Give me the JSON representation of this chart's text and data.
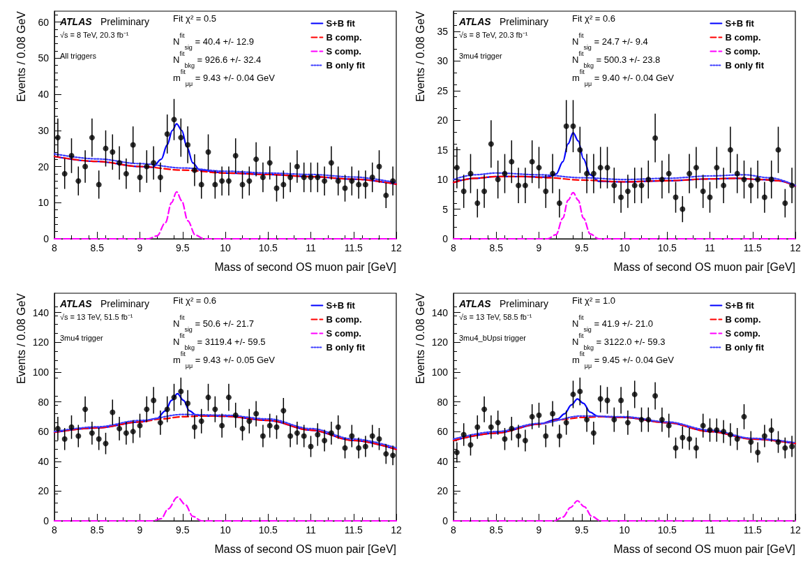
{
  "chart_data": [
    {
      "type": "scatter",
      "title": "ATLAS",
      "subtitle": "Preliminary",
      "xlabel": "Mass of second OS muon pair [GeV]",
      "ylabel": "Events / 0.08 GeV",
      "annotations": [
        "√s = 8 TeV, 20.3 fb⁻¹",
        "All triggers",
        "Fit χ² = 0.5",
        "N$^{fit}$$_{sig}$ = 40.4 +/- 12.9",
        "N$^{fit}$$_{bkg}$ = 926.6 +/- 32.4",
        "m$^{fit}$$_{μμ}$ = 9.43 +/- 0.04 GeV"
      ],
      "xlim": [
        8,
        12
      ],
      "xticks": [
        8,
        8.5,
        9,
        9.5,
        10,
        10.5,
        11,
        11.5,
        12
      ],
      "ylim": [
        0,
        63
      ],
      "yticks": [
        0,
        10,
        20,
        30,
        40,
        50,
        60
      ],
      "grid": false,
      "legend": "top right",
      "series": [
        {
          "marker": "circle",
          "color": "#000000",
          "x": [
            8.04,
            8.12,
            8.2,
            8.28,
            8.36,
            8.44,
            8.52,
            8.6,
            8.68,
            8.76,
            8.84,
            8.92,
            9,
            9.08,
            9.16,
            9.24,
            9.32,
            9.4,
            9.48,
            9.56,
            9.64,
            9.72,
            9.8,
            9.88,
            9.96,
            10.04,
            10.12,
            10.2,
            10.28,
            10.36,
            10.44,
            10.52,
            10.6,
            10.68,
            10.76,
            10.84,
            10.92,
            11,
            11.08,
            11.16,
            11.24,
            11.32,
            11.4,
            11.48,
            11.56,
            11.64,
            11.72,
            11.8,
            11.88,
            11.96
          ],
          "values": [
            28,
            18,
            23,
            16,
            20,
            28,
            15,
            25,
            24,
            21,
            18,
            26,
            17,
            20,
            21,
            17,
            29,
            33,
            28,
            26,
            19,
            15,
            24,
            15,
            16,
            16,
            23,
            15,
            16,
            22,
            17,
            21,
            14,
            15,
            17,
            20,
            17,
            17,
            17,
            16,
            21,
            16,
            14,
            16,
            15,
            15,
            17,
            20,
            12,
            16
          ],
          "errors": [
            5.3,
            4.2,
            4.8,
            4,
            4.5,
            5.3,
            3.9,
            5,
            4.9,
            4.6,
            4.2,
            5.1,
            4.1,
            4.5,
            4.6,
            4.1,
            5.4,
            5.7,
            5.3,
            5.1,
            4.4,
            3.9,
            4.9,
            3.9,
            4,
            4,
            4.8,
            3.9,
            4,
            4.7,
            4.1,
            4.6,
            3.7,
            3.9,
            4.1,
            4.5,
            4.1,
            4.1,
            4.1,
            4,
            4.6,
            4,
            3.7,
            4,
            3.9,
            3.9,
            4.1,
            4.5,
            3.5,
            4
          ]
        },
        {
          "type": "line",
          "name": "S+B fit",
          "color": "#0000ff",
          "line_style": "solid",
          "x": [
            8,
            8.5,
            9,
            9.15,
            9.25,
            9.32,
            9.38,
            9.43,
            9.49,
            9.55,
            9.62,
            9.7,
            10,
            10.5,
            11,
            11.5,
            12
          ],
          "values": [
            22.8,
            21.4,
            20,
            19.8,
            22,
            26,
            30,
            31.8,
            30,
            25.5,
            21,
            19,
            18.2,
            17.8,
            17.2,
            16.5,
            15.1
          ]
        },
        {
          "type": "line",
          "name": "B comp.",
          "color": "#ff0000",
          "line_style": "dashed",
          "x": [
            8,
            8.5,
            9,
            9.5,
            10,
            10.5,
            11,
            11.5,
            12
          ],
          "values": [
            22.8,
            21.4,
            20,
            19,
            18.2,
            17.8,
            17.2,
            16.5,
            15.1
          ]
        },
        {
          "type": "line",
          "name": "S comp.",
          "color": "#ff00ff",
          "line_style": "dashed",
          "x": [
            8,
            9.1,
            9.2,
            9.3,
            9.37,
            9.43,
            9.49,
            9.56,
            9.65,
            9.75,
            12
          ],
          "values": [
            0,
            0,
            0.8,
            4.5,
            10,
            13,
            10.5,
            5,
            1,
            0,
            0
          ]
        },
        {
          "type": "line",
          "name": "B only fit",
          "color": "#3b3bff",
          "line_style": "dotted",
          "x": [
            8,
            8.5,
            9,
            9.5,
            10,
            10.5,
            11,
            11.5,
            12
          ],
          "values": [
            23.5,
            22.1,
            20.8,
            19.6,
            18.7,
            18.2,
            17.8,
            17.1,
            15.5
          ]
        }
      ]
    },
    {
      "type": "scatter",
      "title": "ATLAS",
      "subtitle": "Preliminary",
      "xlabel": "Mass of second OS muon pair [GeV]",
      "ylabel": "Events / 0.08 GeV",
      "annotations": [
        "√s = 8 TeV, 20.3 fb⁻¹",
        "3mu4 trigger",
        "Fit χ² = 0.6",
        "N$^{fit}$$_{sig}$ = 24.7 +/- 9.4",
        "N$^{fit}$$_{bkg}$ = 500.3 +/- 23.8",
        "m$^{fit}$$_{μμ}$ = 9.40 +/- 0.04 GeV"
      ],
      "xlim": [
        8,
        12
      ],
      "xticks": [
        8,
        8.5,
        9,
        9.5,
        10,
        10.5,
        11,
        11.5,
        12
      ],
      "ylim": [
        0,
        38.4
      ],
      "yticks": [
        0,
        5,
        10,
        15,
        20,
        25,
        30,
        35
      ],
      "grid": false,
      "legend": "top right",
      "series": [
        {
          "marker": "circle",
          "color": "#000000",
          "x": [
            8.04,
            8.12,
            8.2,
            8.28,
            8.36,
            8.44,
            8.52,
            8.6,
            8.68,
            8.76,
            8.84,
            8.92,
            9,
            9.08,
            9.16,
            9.24,
            9.32,
            9.4,
            9.48,
            9.56,
            9.64,
            9.72,
            9.8,
            9.88,
            9.96,
            10.04,
            10.12,
            10.2,
            10.28,
            10.36,
            10.44,
            10.52,
            10.6,
            10.68,
            10.76,
            10.84,
            10.92,
            11,
            11.08,
            11.16,
            11.24,
            11.32,
            11.4,
            11.48,
            11.56,
            11.64,
            11.72,
            11.8,
            11.88,
            11.96
          ],
          "values": [
            12,
            8,
            11,
            6,
            8,
            16,
            10,
            11,
            13,
            9,
            9,
            13,
            12,
            8,
            11,
            6,
            19,
            19,
            15,
            11,
            11,
            12,
            12,
            9,
            7,
            8,
            9,
            9,
            10,
            17,
            10,
            11,
            7,
            5,
            11,
            12,
            8,
            7,
            12,
            9,
            15,
            11,
            10,
            9,
            10,
            7,
            10,
            15,
            6,
            9
          ],
          "errors": [
            3.5,
            2.8,
            3.3,
            2.4,
            2.8,
            4,
            3.2,
            3.3,
            3.6,
            3,
            3,
            3.6,
            3.5,
            2.8,
            3.3,
            2.4,
            4.4,
            4.4,
            3.9,
            3.3,
            3.3,
            3.5,
            3.5,
            3,
            2.6,
            2.8,
            3,
            3,
            3.2,
            4.1,
            3.2,
            3.3,
            2.6,
            2.2,
            3.3,
            3.5,
            2.8,
            2.6,
            3.5,
            3,
            3.9,
            3.3,
            3.2,
            3,
            3.2,
            2.6,
            3.2,
            3.9,
            2.4,
            3
          ]
        },
        {
          "type": "line",
          "name": "S+B fit",
          "color": "#0000ff",
          "line_style": "solid",
          "x": [
            8,
            8.25,
            8.5,
            8.8,
            9.1,
            9.2,
            9.28,
            9.34,
            9.4,
            9.46,
            9.52,
            9.6,
            9.7,
            10,
            10.5,
            11,
            11.3,
            11.6,
            11.8,
            12
          ],
          "values": [
            9.5,
            10.2,
            10.5,
            10.5,
            10.4,
            10.9,
            13,
            16,
            17.9,
            16.5,
            13.5,
            10.8,
            9.7,
            9.6,
            9.8,
            10.1,
            10.2,
            10,
            9.8,
            8.9
          ]
        },
        {
          "type": "line",
          "name": "B comp.",
          "color": "#ff0000",
          "line_style": "dashed",
          "x": [
            8,
            8.25,
            8.5,
            8.8,
            9.1,
            9.5,
            10,
            10.5,
            11,
            11.3,
            11.6,
            11.8,
            12
          ],
          "values": [
            9.5,
            10.2,
            10.5,
            10.5,
            10.3,
            9.9,
            9.6,
            9.8,
            10.1,
            10.2,
            10,
            9.8,
            8.9
          ]
        },
        {
          "type": "line",
          "name": "S comp.",
          "color": "#ff00ff",
          "line_style": "dashed",
          "x": [
            8,
            9.1,
            9.2,
            9.28,
            9.34,
            9.4,
            9.46,
            9.52,
            9.6,
            9.7,
            12
          ],
          "values": [
            0,
            0,
            0.7,
            3.5,
            6.5,
            7.8,
            6.5,
            3.5,
            0.8,
            0,
            0
          ]
        },
        {
          "type": "line",
          "name": "B only fit",
          "color": "#3b3bff",
          "line_style": "dotted",
          "x": [
            8,
            8.25,
            8.5,
            9,
            9.5,
            10,
            10.5,
            11,
            11.4,
            11.7,
            12
          ],
          "values": [
            10,
            10.8,
            11.1,
            10.8,
            10.3,
            10,
            10.2,
            10.6,
            10.8,
            10.3,
            9
          ]
        }
      ]
    },
    {
      "type": "scatter",
      "title": "ATLAS",
      "subtitle": "Preliminary",
      "xlabel": "Mass of second OS muon pair [GeV]",
      "ylabel": "Events / 0.08 GeV",
      "annotations": [
        "√s = 13 TeV, 51.5 fb⁻¹",
        "3mu4 trigger",
        "Fit χ² = 0.6",
        "N$^{fit}$$_{sig}$ = 50.6 +/- 21.7",
        "N$^{fit}$$_{bkg}$ = 3119.4 +/- 59.5",
        "m$^{fit}$$_{μμ}$ = 9.43 +/- 0.05 GeV"
      ],
      "xlim": [
        8,
        12
      ],
      "xticks": [
        8,
        8.5,
        9,
        9.5,
        10,
        10.5,
        11,
        11.5,
        12
      ],
      "ylim": [
        0,
        153
      ],
      "yticks": [
        0,
        20,
        40,
        60,
        80,
        100,
        120,
        140
      ],
      "grid": false,
      "legend": "top right",
      "series": [
        {
          "marker": "circle",
          "color": "#000000",
          "x": [
            8.04,
            8.12,
            8.2,
            8.28,
            8.36,
            8.44,
            8.52,
            8.6,
            8.68,
            8.76,
            8.84,
            8.92,
            9,
            9.08,
            9.16,
            9.24,
            9.32,
            9.4,
            9.48,
            9.56,
            9.64,
            9.72,
            9.8,
            9.88,
            9.96,
            10.04,
            10.12,
            10.2,
            10.28,
            10.36,
            10.44,
            10.52,
            10.6,
            10.68,
            10.76,
            10.84,
            10.92,
            11,
            11.08,
            11.16,
            11.24,
            11.32,
            11.4,
            11.48,
            11.56,
            11.64,
            11.72,
            11.8,
            11.88,
            11.96
          ],
          "values": [
            62,
            55,
            63,
            57,
            75,
            59,
            55,
            52,
            73,
            62,
            59,
            60,
            64,
            75,
            81,
            66,
            75,
            83,
            87,
            79,
            63,
            67,
            83,
            75,
            64,
            83,
            71,
            62,
            67,
            72,
            57,
            64,
            63,
            74,
            57,
            59,
            57,
            50,
            58,
            54,
            59,
            63,
            49,
            57,
            49,
            50,
            57,
            55,
            45,
            44
          ],
          "errors": [
            7.9,
            7.4,
            7.9,
            7.5,
            8.7,
            7.7,
            7.4,
            7.2,
            8.5,
            7.9,
            7.7,
            7.7,
            8,
            8.7,
            9,
            8.1,
            8.7,
            9.1,
            9.3,
            8.9,
            7.9,
            8.2,
            9.1,
            8.7,
            8,
            9.1,
            8.4,
            7.9,
            8.2,
            8.5,
            7.5,
            8,
            7.9,
            8.6,
            7.5,
            7.7,
            7.5,
            7.1,
            7.6,
            7.3,
            7.7,
            7.9,
            7,
            7.5,
            7,
            7.1,
            7.5,
            7.4,
            6.7,
            6.6
          ]
        },
        {
          "type": "line",
          "name": "S+B fit",
          "color": "#0000ff",
          "line_style": "solid",
          "x": [
            8,
            8.5,
            9,
            9.2,
            9.3,
            9.37,
            9.44,
            9.51,
            9.58,
            9.66,
            9.75,
            10,
            10.5,
            11,
            11.5,
            12
          ],
          "values": [
            59.5,
            62.5,
            66.5,
            68.8,
            74,
            81,
            85.5,
            81,
            74,
            71,
            70.5,
            70.3,
            67.5,
            61,
            54,
            48
          ]
        },
        {
          "type": "line",
          "name": "B comp.",
          "color": "#ff0000",
          "line_style": "dashed",
          "x": [
            8,
            8.5,
            9,
            9.25,
            9.5,
            9.75,
            10,
            10.5,
            11,
            11.5,
            12
          ],
          "values": [
            59.5,
            62.5,
            66.5,
            68.5,
            70,
            70.5,
            70.3,
            67.5,
            61,
            54,
            48
          ]
        },
        {
          "type": "line",
          "name": "S comp.",
          "color": "#ff00ff",
          "line_style": "dashed",
          "x": [
            8,
            9.15,
            9.25,
            9.33,
            9.44,
            9.53,
            9.62,
            9.72,
            12
          ],
          "values": [
            0,
            0,
            1.5,
            8,
            16,
            11,
            3,
            0,
            0
          ]
        },
        {
          "type": "line",
          "name": "B only fit",
          "color": "#3b3bff",
          "line_style": "dotted",
          "x": [
            8,
            8.5,
            9,
            9.5,
            10,
            10.5,
            11,
            11.5,
            12
          ],
          "values": [
            60,
            63.2,
            67.5,
            71.5,
            71,
            68.5,
            62,
            55,
            49
          ]
        }
      ]
    },
    {
      "type": "scatter",
      "title": "ATLAS",
      "subtitle": "Preliminary",
      "xlabel": "Mass of second OS muon pair [GeV]",
      "ylabel": "Events / 0.08 GeV",
      "annotations": [
        "√s = 13 TeV, 58.5 fb⁻¹",
        "3mu4_bUpsi trigger",
        "Fit χ² = 1.0",
        "N$^{fit}$$_{sig}$ = 41.9 +/- 21.0",
        "N$^{fit}$$_{bkg}$ = 3122.0 +/- 59.3",
        "m$^{fit}$$_{μμ}$ = 9.45 +/- 0.04 GeV"
      ],
      "xlim": [
        8,
        12
      ],
      "xticks": [
        8,
        8.5,
        9,
        9.5,
        10,
        10.5,
        11,
        11.5,
        12
      ],
      "ylim": [
        0,
        153
      ],
      "yticks": [
        0,
        20,
        40,
        60,
        80,
        100,
        120,
        140
      ],
      "grid": false,
      "legend": "top right",
      "series": [
        {
          "marker": "circle",
          "color": "#000000",
          "x": [
            8.04,
            8.12,
            8.2,
            8.28,
            8.36,
            8.44,
            8.52,
            8.6,
            8.68,
            8.76,
            8.84,
            8.92,
            9,
            9.08,
            9.16,
            9.24,
            9.32,
            9.4,
            9.48,
            9.56,
            9.64,
            9.72,
            9.8,
            9.88,
            9.96,
            10.04,
            10.12,
            10.2,
            10.28,
            10.36,
            10.44,
            10.52,
            10.6,
            10.68,
            10.76,
            10.84,
            10.92,
            11,
            11.08,
            11.16,
            11.24,
            11.32,
            11.4,
            11.48,
            11.56,
            11.64,
            11.72,
            11.8,
            11.88,
            11.96
          ],
          "values": [
            46,
            58,
            51,
            63,
            75,
            63,
            66,
            55,
            62,
            57,
            54,
            70,
            71,
            57,
            72,
            57,
            66,
            85,
            87,
            68,
            59,
            82,
            81,
            68,
            81,
            66,
            85,
            68,
            68,
            84,
            68,
            64,
            49,
            56,
            55,
            49,
            64,
            61,
            61,
            60,
            58,
            55,
            70,
            53,
            46,
            57,
            61,
            53,
            49,
            50
          ],
          "errors": [
            6.8,
            7.6,
            7.1,
            7.9,
            8.7,
            7.9,
            8.1,
            7.4,
            7.9,
            7.5,
            7.3,
            8.4,
            8.4,
            7.5,
            8.5,
            7.5,
            8.1,
            9.2,
            9.3,
            8.2,
            7.7,
            9.1,
            9,
            8.2,
            9,
            8.1,
            9.2,
            8.2,
            8.2,
            9.2,
            8.2,
            8,
            7,
            7.5,
            7.4,
            7,
            8,
            7.8,
            7.8,
            7.7,
            7.6,
            7.4,
            8.4,
            7.3,
            6.8,
            7.5,
            7.8,
            7.3,
            7,
            7.1
          ]
        },
        {
          "type": "line",
          "name": "S+B fit",
          "color": "#0000ff",
          "line_style": "solid",
          "x": [
            8,
            8.5,
            9,
            9.22,
            9.3,
            9.38,
            9.45,
            9.52,
            9.6,
            9.68,
            9.75,
            10,
            10.5,
            11,
            11.5,
            12
          ],
          "values": [
            54,
            59,
            65,
            68.5,
            72,
            78,
            82,
            79,
            73,
            70.5,
            70,
            69.5,
            66,
            60,
            55,
            52
          ]
        },
        {
          "type": "line",
          "name": "B comp.",
          "color": "#ff0000",
          "line_style": "dashed",
          "x": [
            8,
            8.5,
            9,
            9.25,
            9.5,
            9.75,
            10,
            10.5,
            11,
            11.5,
            12
          ],
          "values": [
            54,
            59,
            65,
            68,
            69.5,
            70,
            69.5,
            66,
            60,
            55,
            52
          ]
        },
        {
          "type": "line",
          "name": "S comp.",
          "color": "#ff00ff",
          "line_style": "dashed",
          "x": [
            8,
            9.18,
            9.28,
            9.37,
            9.45,
            9.53,
            9.62,
            9.72,
            12
          ],
          "values": [
            0,
            0,
            2.5,
            9,
            13.5,
            9.5,
            3,
            0,
            0
          ]
        },
        {
          "type": "line",
          "name": "B only fit",
          "color": "#3b3bff",
          "line_style": "dotted",
          "x": [
            8,
            8.5,
            9,
            9.5,
            10,
            10.5,
            11,
            11.5,
            12
          ],
          "values": [
            55,
            60,
            65.5,
            70.5,
            70,
            66.5,
            61,
            55.5,
            52.5
          ]
        }
      ]
    }
  ]
}
